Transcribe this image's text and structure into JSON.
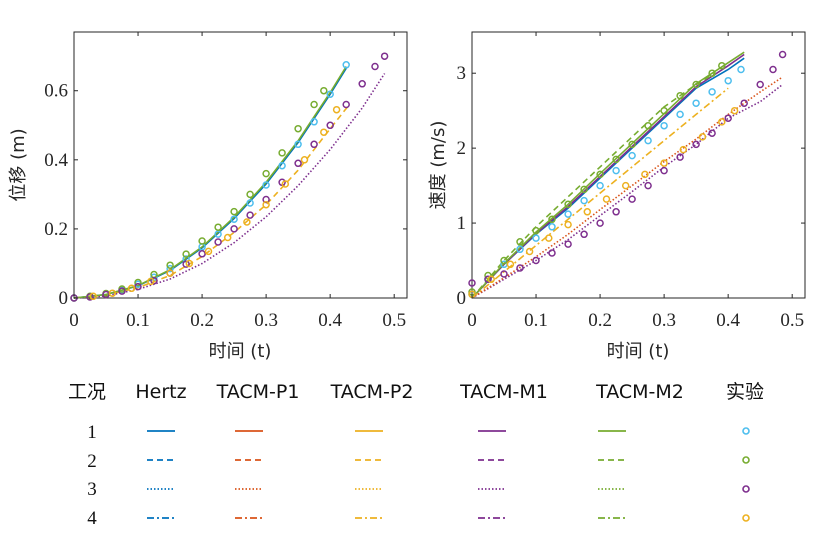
{
  "chart_data": [
    {
      "type": "line",
      "title": "",
      "xlabel": "时间 (t)",
      "ylabel": "位移 (m)",
      "xlim": [
        0,
        0.52
      ],
      "ylim": [
        0,
        0.77
      ],
      "xticks": [
        "0",
        "0.1",
        "0.2",
        "0.3",
        "0.4",
        "0.5"
      ],
      "xtick_values": [
        0,
        0.1,
        0.2,
        0.3,
        0.4,
        0.5
      ],
      "yticks": [
        "0",
        "0.2",
        "0.4",
        "0.6"
      ],
      "ytick_values": [
        0,
        0.2,
        0.4,
        0.6
      ],
      "series": [
        {
          "name": "Hertz 1",
          "model": "Hertz",
          "case": "1",
          "x": [
            0,
            0.05,
            0.1,
            0.15,
            0.2,
            0.25,
            0.3,
            0.35,
            0.4,
            0.425
          ],
          "y": [
            0,
            0.01,
            0.035,
            0.08,
            0.145,
            0.23,
            0.33,
            0.45,
            0.59,
            0.665
          ]
        },
        {
          "name": "TACM-P2 2",
          "model": "TACM-P2",
          "case": "2",
          "x": [
            0,
            0.05,
            0.1,
            0.15,
            0.2,
            0.25,
            0.3,
            0.35,
            0.4,
            0.43
          ],
          "y": [
            0,
            0.008,
            0.03,
            0.065,
            0.12,
            0.19,
            0.27,
            0.37,
            0.49,
            0.56
          ]
        },
        {
          "name": "TACM-M1 3",
          "model": "TACM-M1",
          "case": "3",
          "x": [
            0,
            0.05,
            0.1,
            0.15,
            0.2,
            0.25,
            0.3,
            0.35,
            0.4,
            0.45,
            0.485
          ],
          "y": [
            0,
            0.006,
            0.025,
            0.055,
            0.1,
            0.16,
            0.235,
            0.325,
            0.43,
            0.55,
            0.65
          ]
        },
        {
          "name": "TACM-M2 1",
          "model": "TACM-M2",
          "case": "1",
          "x": [
            0,
            0.05,
            0.1,
            0.15,
            0.2,
            0.25,
            0.3,
            0.35,
            0.4,
            0.425
          ],
          "y": [
            0,
            0.01,
            0.036,
            0.082,
            0.148,
            0.234,
            0.335,
            0.455,
            0.595,
            0.67
          ]
        }
      ],
      "experiment": [
        {
          "case": "1",
          "x": [
            0,
            0.025,
            0.05,
            0.075,
            0.1,
            0.125,
            0.15,
            0.175,
            0.2,
            0.225,
            0.25,
            0.275,
            0.3,
            0.325,
            0.35,
            0.375,
            0.4,
            0.425
          ],
          "y": [
            0,
            0.004,
            0.012,
            0.024,
            0.04,
            0.06,
            0.085,
            0.113,
            0.148,
            0.185,
            0.228,
            0.275,
            0.327,
            0.383,
            0.445,
            0.51,
            0.59,
            0.675
          ]
        },
        {
          "case": "2",
          "x": [
            0,
            0.025,
            0.05,
            0.075,
            0.1,
            0.125,
            0.15,
            0.175,
            0.2,
            0.225,
            0.25,
            0.275,
            0.3,
            0.325,
            0.35,
            0.375,
            0.39
          ],
          "y": [
            0,
            0.005,
            0.013,
            0.026,
            0.045,
            0.068,
            0.095,
            0.127,
            0.165,
            0.205,
            0.25,
            0.3,
            0.36,
            0.42,
            0.49,
            0.56,
            0.6
          ]
        },
        {
          "case": "3",
          "x": [
            0,
            0.025,
            0.05,
            0.075,
            0.1,
            0.125,
            0.15,
            0.175,
            0.2,
            0.225,
            0.25,
            0.275,
            0.3,
            0.325,
            0.35,
            0.375,
            0.4,
            0.425,
            0.45,
            0.47,
            0.485
          ],
          "y": [
            0,
            0.003,
            0.01,
            0.02,
            0.033,
            0.05,
            0.072,
            0.098,
            0.128,
            0.162,
            0.2,
            0.24,
            0.285,
            0.335,
            0.39,
            0.445,
            0.5,
            0.56,
            0.62,
            0.67,
            0.7
          ]
        },
        {
          "case": "4",
          "x": [
            0.03,
            0.06,
            0.09,
            0.12,
            0.15,
            0.18,
            0.21,
            0.24,
            0.27,
            0.3,
            0.33,
            0.36,
            0.39,
            0.41
          ],
          "y": [
            0.005,
            0.014,
            0.028,
            0.048,
            0.072,
            0.1,
            0.135,
            0.175,
            0.22,
            0.27,
            0.33,
            0.4,
            0.48,
            0.545
          ]
        }
      ]
    },
    {
      "type": "line",
      "title": "",
      "xlabel": "时间 (t)",
      "ylabel": "速度 (m/s)",
      "xlim": [
        0,
        0.52
      ],
      "ylim": [
        0,
        3.55
      ],
      "xticks": [
        "0",
        "0.1",
        "0.2",
        "0.3",
        "0.4",
        "0.5"
      ],
      "xtick_values": [
        0,
        0.1,
        0.2,
        0.3,
        0.4,
        0.5
      ],
      "yticks": [
        "0",
        "1",
        "2",
        "3"
      ],
      "ytick_values": [
        0,
        1,
        2,
        3
      ],
      "series": [
        {
          "name": "Hertz 1",
          "model": "Hertz",
          "case": "1",
          "x": [
            0,
            0.05,
            0.1,
            0.15,
            0.2,
            0.25,
            0.3,
            0.35,
            0.4,
            0.425
          ],
          "y": [
            0,
            0.45,
            0.85,
            1.2,
            1.6,
            2.0,
            2.4,
            2.8,
            3.05,
            3.2
          ]
        },
        {
          "name": "TACM-M1 1",
          "model": "TACM-M1",
          "case": "1",
          "x": [
            0,
            0.05,
            0.1,
            0.15,
            0.2,
            0.25,
            0.3,
            0.35,
            0.4,
            0.425
          ],
          "y": [
            0,
            0.45,
            0.86,
            1.22,
            1.62,
            2.02,
            2.42,
            2.82,
            3.1,
            3.25
          ]
        },
        {
          "name": "TACM-M2 1",
          "model": "TACM-M2",
          "case": "1",
          "x": [
            0,
            0.05,
            0.1,
            0.15,
            0.2,
            0.25,
            0.3,
            0.35,
            0.4,
            0.425
          ],
          "y": [
            0,
            0.46,
            0.88,
            1.25,
            1.66,
            2.06,
            2.46,
            2.86,
            3.14,
            3.28
          ]
        },
        {
          "name": "TACM-M2 2",
          "model": "TACM-M2",
          "case": "2",
          "x": [
            0,
            0.05,
            0.1,
            0.15,
            0.2,
            0.25,
            0.3,
            0.35,
            0.38
          ],
          "y": [
            0,
            0.5,
            0.95,
            1.35,
            1.75,
            2.15,
            2.55,
            2.85,
            3.0
          ]
        },
        {
          "name": "TACM-P2 4",
          "model": "TACM-P2",
          "case": "4",
          "x": [
            0,
            0.05,
            0.1,
            0.15,
            0.2,
            0.25,
            0.3,
            0.35,
            0.4
          ],
          "y": [
            0,
            0.35,
            0.7,
            1.05,
            1.4,
            1.75,
            2.1,
            2.45,
            2.8
          ]
        },
        {
          "name": "TACM-M1 3",
          "model": "TACM-M1",
          "case": "3",
          "x": [
            0,
            0.05,
            0.1,
            0.15,
            0.2,
            0.25,
            0.3,
            0.35,
            0.4,
            0.45,
            0.485
          ],
          "y": [
            0,
            0.25,
            0.5,
            0.78,
            1.1,
            1.42,
            1.75,
            2.05,
            2.4,
            2.62,
            2.85
          ]
        },
        {
          "name": "TACM-P1 3",
          "model": "TACM-P1",
          "case": "3",
          "x": [
            0,
            0.05,
            0.1,
            0.15,
            0.2,
            0.25,
            0.3,
            0.35,
            0.4,
            0.45,
            0.485
          ],
          "y": [
            0,
            0.27,
            0.55,
            0.85,
            1.18,
            1.5,
            1.82,
            2.12,
            2.45,
            2.75,
            2.95
          ]
        }
      ],
      "experiment": [
        {
          "case": "1",
          "x": [
            0,
            0.025,
            0.05,
            0.075,
            0.1,
            0.125,
            0.15,
            0.175,
            0.2,
            0.225,
            0.25,
            0.275,
            0.3,
            0.325,
            0.35,
            0.375,
            0.4,
            0.42
          ],
          "y": [
            0.05,
            0.25,
            0.45,
            0.65,
            0.8,
            0.95,
            1.12,
            1.3,
            1.5,
            1.7,
            1.9,
            2.1,
            2.3,
            2.45,
            2.6,
            2.75,
            2.9,
            3.05
          ]
        },
        {
          "case": "2",
          "x": [
            0,
            0.025,
            0.05,
            0.075,
            0.1,
            0.125,
            0.15,
            0.175,
            0.2,
            0.225,
            0.25,
            0.275,
            0.3,
            0.325,
            0.35,
            0.375,
            0.39
          ],
          "y": [
            0.08,
            0.3,
            0.5,
            0.75,
            0.9,
            1.05,
            1.25,
            1.45,
            1.65,
            1.85,
            2.05,
            2.3,
            2.5,
            2.7,
            2.85,
            3.0,
            3.1
          ]
        },
        {
          "case": "3",
          "x": [
            0,
            0.025,
            0.05,
            0.075,
            0.1,
            0.125,
            0.15,
            0.175,
            0.2,
            0.225,
            0.25,
            0.275,
            0.3,
            0.325,
            0.35,
            0.375,
            0.4,
            0.425,
            0.45,
            0.47,
            0.485
          ],
          "y": [
            0.2,
            0.25,
            0.32,
            0.4,
            0.5,
            0.6,
            0.72,
            0.85,
            1.0,
            1.15,
            1.32,
            1.5,
            1.7,
            1.88,
            2.05,
            2.2,
            2.4,
            2.6,
            2.85,
            3.05,
            3.25
          ]
        },
        {
          "case": "4",
          "x": [
            0,
            0.03,
            0.06,
            0.09,
            0.12,
            0.15,
            0.18,
            0.21,
            0.24,
            0.27,
            0.3,
            0.33,
            0.36,
            0.39,
            0.41
          ],
          "y": [
            0.05,
            0.25,
            0.45,
            0.62,
            0.8,
            0.98,
            1.15,
            1.32,
            1.5,
            1.65,
            1.8,
            1.98,
            2.15,
            2.35,
            2.5
          ]
        }
      ]
    }
  ],
  "legend": {
    "header_case": "工况",
    "models": [
      "Hertz",
      "TACM-P1",
      "TACM-P2",
      "TACM-M1",
      "TACM-M2",
      "实验"
    ],
    "cases": [
      "1",
      "2",
      "3",
      "4"
    ],
    "line_styles": [
      "solid",
      "dashed",
      "dotted",
      "dashdot"
    ]
  },
  "colors": {
    "Hertz": "#0072BD",
    "TACM-P1": "#D95319",
    "TACM-P2": "#EDB120",
    "TACM-M1": "#7E2F8E",
    "TACM-M2": "#77AC30",
    "exp_case_1": "#4DBEEE",
    "exp_case_2": "#77AC30",
    "exp_case_3": "#7E2F8E",
    "exp_case_4": "#EDB120"
  }
}
